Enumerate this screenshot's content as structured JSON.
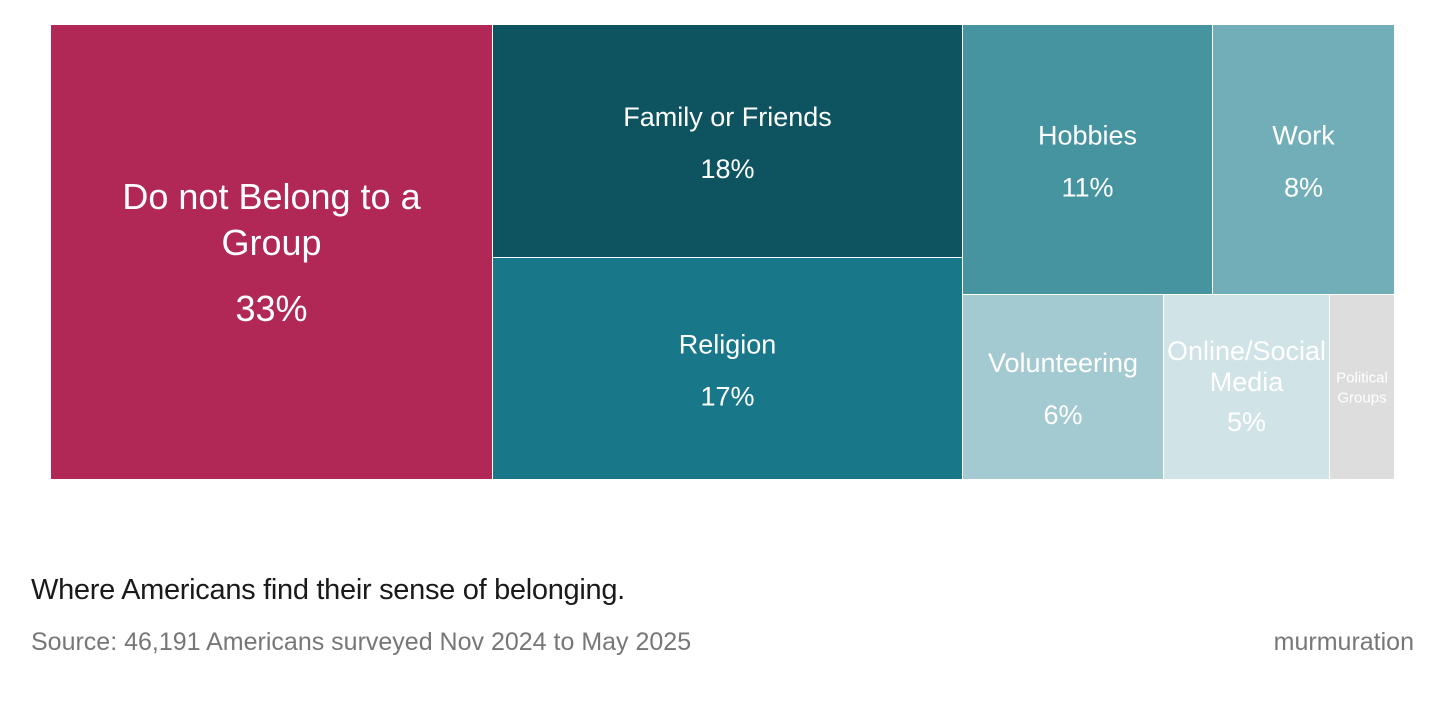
{
  "chart_data": {
    "type": "treemap",
    "title": "Where Americans find their sense of belonging.",
    "source": "Source: 46,191 Americans surveyed Nov 2024 to May 2025",
    "brand": "murmuration",
    "categories": [
      "Do not Belong to a Group",
      "Family or Friends",
      "Religion",
      "Hobbies",
      "Work",
      "Volunteering",
      "Online/Social Media",
      "Political Groups"
    ],
    "values": [
      33,
      18,
      17,
      11,
      8,
      6,
      5,
      2
    ],
    "items": [
      {
        "id": "do-not-belong",
        "label_lines": [
          "Do not Belong to a",
          "Group"
        ],
        "value": 33,
        "value_label": "33%",
        "color": "#B12857",
        "text_color": "#ffffff"
      },
      {
        "id": "family-or-friends",
        "label_lines": [
          "Family or Friends"
        ],
        "value": 18,
        "value_label": "18%",
        "color": "#0D5460",
        "text_color": "#ffffff"
      },
      {
        "id": "religion",
        "label_lines": [
          "Religion"
        ],
        "value": 17,
        "value_label": "17%",
        "color": "#19778A",
        "text_color": "#ffffff"
      },
      {
        "id": "hobbies",
        "label_lines": [
          "Hobbies"
        ],
        "value": 11,
        "value_label": "11%",
        "color": "#4794A1",
        "text_color": "#ffffff"
      },
      {
        "id": "work",
        "label_lines": [
          "Work"
        ],
        "value": 8,
        "value_label": "8%",
        "color": "#72AEB7",
        "text_color": "#ffffff"
      },
      {
        "id": "volunteering",
        "label_lines": [
          "Volunteering"
        ],
        "value": 6,
        "value_label": "6%",
        "color": "#A3CAD0",
        "text_color": "#ffffff"
      },
      {
        "id": "online-social-media",
        "label_lines": [
          "Online/Social",
          "Media"
        ],
        "value": 5,
        "value_label": "5%",
        "color": "#D0E3E7",
        "text_color": "#ffffff"
      },
      {
        "id": "political-groups",
        "label_lines": [
          "Political",
          "Groups"
        ],
        "value": 2,
        "value_label": "",
        "color": "#DDDDDD",
        "text_color": "#ffffff"
      }
    ]
  }
}
